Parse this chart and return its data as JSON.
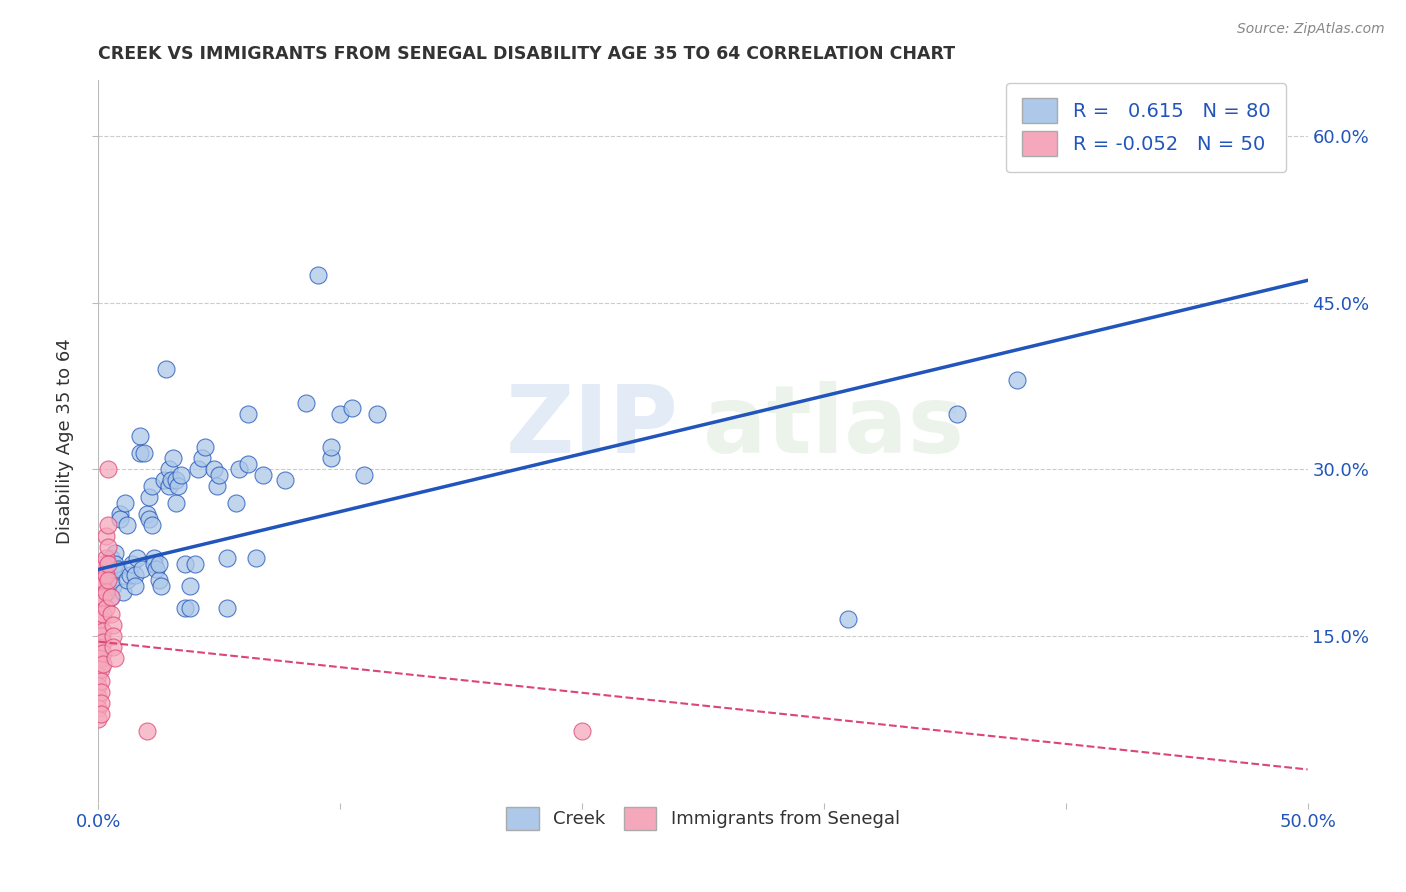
{
  "title": "CREEK VS IMMIGRANTS FROM SENEGAL DISABILITY AGE 35 TO 64 CORRELATION CHART",
  "source": "Source: ZipAtlas.com",
  "ylabel": "Disability Age 35 to 64",
  "xlim": [
    0.0,
    0.5
  ],
  "ylim": [
    0.0,
    0.65
  ],
  "xticks": [
    0.0,
    0.1,
    0.2,
    0.3,
    0.4,
    0.5
  ],
  "xticklabels": [
    "0.0%",
    "",
    "",
    "",
    "",
    "50.0%"
  ],
  "yticks": [
    0.15,
    0.3,
    0.45,
    0.6
  ],
  "yticklabels": [
    "15.0%",
    "30.0%",
    "45.0%",
    "60.0%"
  ],
  "creek_R": 0.615,
  "creek_N": 80,
  "senegal_R": -0.052,
  "senegal_N": 50,
  "creek_color": "#adc8e8",
  "senegal_color": "#f5a8bc",
  "creek_line_color": "#2255bb",
  "senegal_line_color": "#dd4477",
  "creek_scatter": [
    [
      0.002,
      0.2
    ],
    [
      0.003,
      0.195
    ],
    [
      0.004,
      0.205
    ],
    [
      0.004,
      0.215
    ],
    [
      0.005,
      0.2
    ],
    [
      0.005,
      0.185
    ],
    [
      0.005,
      0.22
    ],
    [
      0.006,
      0.21
    ],
    [
      0.006,
      0.195
    ],
    [
      0.007,
      0.225
    ],
    [
      0.007,
      0.215
    ],
    [
      0.008,
      0.21
    ],
    [
      0.009,
      0.26
    ],
    [
      0.009,
      0.255
    ],
    [
      0.01,
      0.19
    ],
    [
      0.011,
      0.27
    ],
    [
      0.012,
      0.25
    ],
    [
      0.012,
      0.2
    ],
    [
      0.013,
      0.205
    ],
    [
      0.014,
      0.215
    ],
    [
      0.015,
      0.205
    ],
    [
      0.015,
      0.195
    ],
    [
      0.016,
      0.22
    ],
    [
      0.017,
      0.33
    ],
    [
      0.017,
      0.315
    ],
    [
      0.018,
      0.21
    ],
    [
      0.019,
      0.315
    ],
    [
      0.02,
      0.26
    ],
    [
      0.021,
      0.275
    ],
    [
      0.021,
      0.255
    ],
    [
      0.022,
      0.25
    ],
    [
      0.022,
      0.285
    ],
    [
      0.023,
      0.22
    ],
    [
      0.023,
      0.215
    ],
    [
      0.024,
      0.21
    ],
    [
      0.025,
      0.2
    ],
    [
      0.025,
      0.215
    ],
    [
      0.026,
      0.195
    ],
    [
      0.027,
      0.29
    ],
    [
      0.028,
      0.39
    ],
    [
      0.029,
      0.285
    ],
    [
      0.029,
      0.3
    ],
    [
      0.03,
      0.29
    ],
    [
      0.031,
      0.31
    ],
    [
      0.032,
      0.29
    ],
    [
      0.032,
      0.27
    ],
    [
      0.033,
      0.285
    ],
    [
      0.034,
      0.295
    ],
    [
      0.036,
      0.175
    ],
    [
      0.036,
      0.215
    ],
    [
      0.038,
      0.175
    ],
    [
      0.038,
      0.195
    ],
    [
      0.04,
      0.215
    ],
    [
      0.041,
      0.3
    ],
    [
      0.043,
      0.31
    ],
    [
      0.044,
      0.32
    ],
    [
      0.048,
      0.3
    ],
    [
      0.049,
      0.285
    ],
    [
      0.05,
      0.295
    ],
    [
      0.053,
      0.175
    ],
    [
      0.053,
      0.22
    ],
    [
      0.057,
      0.27
    ],
    [
      0.058,
      0.3
    ],
    [
      0.062,
      0.35
    ],
    [
      0.062,
      0.305
    ],
    [
      0.065,
      0.22
    ],
    [
      0.068,
      0.295
    ],
    [
      0.077,
      0.29
    ],
    [
      0.086,
      0.36
    ],
    [
      0.091,
      0.475
    ],
    [
      0.096,
      0.31
    ],
    [
      0.096,
      0.32
    ],
    [
      0.1,
      0.35
    ],
    [
      0.105,
      0.355
    ],
    [
      0.11,
      0.295
    ],
    [
      0.115,
      0.35
    ],
    [
      0.31,
      0.165
    ],
    [
      0.355,
      0.35
    ],
    [
      0.38,
      0.38
    ],
    [
      0.43,
      0.59
    ]
  ],
  "senegal_scatter": [
    [
      0.0,
      0.2
    ],
    [
      0.0,
      0.185
    ],
    [
      0.0,
      0.17
    ],
    [
      0.0,
      0.155
    ],
    [
      0.0,
      0.145
    ],
    [
      0.0,
      0.135
    ],
    [
      0.0,
      0.125
    ],
    [
      0.0,
      0.115
    ],
    [
      0.0,
      0.105
    ],
    [
      0.0,
      0.095
    ],
    [
      0.0,
      0.085
    ],
    [
      0.0,
      0.075
    ],
    [
      0.001,
      0.21
    ],
    [
      0.001,
      0.195
    ],
    [
      0.001,
      0.18
    ],
    [
      0.001,
      0.165
    ],
    [
      0.001,
      0.15
    ],
    [
      0.001,
      0.14
    ],
    [
      0.001,
      0.13
    ],
    [
      0.001,
      0.12
    ],
    [
      0.001,
      0.11
    ],
    [
      0.001,
      0.1
    ],
    [
      0.001,
      0.09
    ],
    [
      0.001,
      0.08
    ],
    [
      0.002,
      0.215
    ],
    [
      0.002,
      0.2
    ],
    [
      0.002,
      0.185
    ],
    [
      0.002,
      0.17
    ],
    [
      0.002,
      0.155
    ],
    [
      0.002,
      0.145
    ],
    [
      0.002,
      0.135
    ],
    [
      0.002,
      0.125
    ],
    [
      0.003,
      0.24
    ],
    [
      0.003,
      0.22
    ],
    [
      0.003,
      0.205
    ],
    [
      0.003,
      0.19
    ],
    [
      0.003,
      0.175
    ],
    [
      0.004,
      0.3
    ],
    [
      0.004,
      0.25
    ],
    [
      0.004,
      0.23
    ],
    [
      0.004,
      0.215
    ],
    [
      0.004,
      0.2
    ],
    [
      0.005,
      0.185
    ],
    [
      0.005,
      0.17
    ],
    [
      0.006,
      0.16
    ],
    [
      0.006,
      0.15
    ],
    [
      0.006,
      0.14
    ],
    [
      0.007,
      0.13
    ],
    [
      0.02,
      0.065
    ],
    [
      0.2,
      0.065
    ]
  ],
  "watermark_zip": "ZIP",
  "watermark_atlas": "atlas",
  "background_color": "#ffffff",
  "grid_color": "#cccccc",
  "title_color": "#333333",
  "tick_color": "#2255bb"
}
